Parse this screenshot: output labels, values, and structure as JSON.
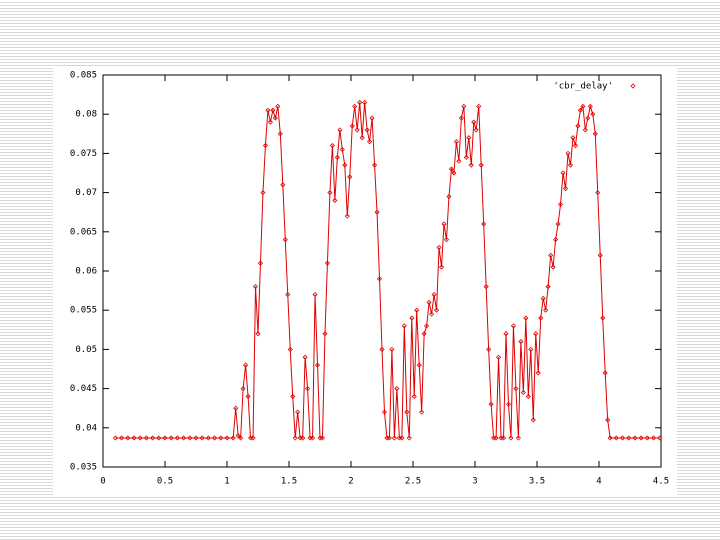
{
  "chart_data": {
    "type": "line",
    "series": [
      {
        "name": "'cbr_delay'",
        "color": "#e00000",
        "x": [
          0.1,
          0.15,
          0.2,
          0.25,
          0.3,
          0.35,
          0.4,
          0.45,
          0.5,
          0.55,
          0.6,
          0.65,
          0.7,
          0.75,
          0.8,
          0.85,
          0.9,
          0.95,
          1,
          1.05,
          1.07,
          1.09,
          1.11,
          1.13,
          1.15,
          1.17,
          1.19,
          1.21,
          1.23,
          1.25,
          1.27,
          1.29,
          1.31,
          1.33,
          1.35,
          1.37,
          1.39,
          1.41,
          1.43,
          1.45,
          1.47,
          1.49,
          1.51,
          1.53,
          1.55,
          1.57,
          1.59,
          1.61,
          1.63,
          1.65,
          1.67,
          1.69,
          1.71,
          1.73,
          1.75,
          1.77,
          1.79,
          1.81,
          1.83,
          1.85,
          1.87,
          1.89,
          1.91,
          1.93,
          1.95,
          1.97,
          1.99,
          2.01,
          2.03,
          2.05,
          2.07,
          2.09,
          2.11,
          2.13,
          2.15,
          2.17,
          2.19,
          2.21,
          2.23,
          2.25,
          2.27,
          2.29,
          2.31,
          2.33,
          2.35,
          2.37,
          2.39,
          2.41,
          2.43,
          2.45,
          2.47,
          2.49,
          2.51,
          2.53,
          2.55,
          2.57,
          2.59,
          2.61,
          2.63,
          2.65,
          2.67,
          2.69,
          2.71,
          2.73,
          2.75,
          2.77,
          2.79,
          2.81,
          2.83,
          2.85,
          2.87,
          2.89,
          2.91,
          2.93,
          2.95,
          2.97,
          2.99,
          3.01,
          3.03,
          3.05,
          3.07,
          3.09,
          3.11,
          3.13,
          3.15,
          3.17,
          3.19,
          3.21,
          3.23,
          3.25,
          3.27,
          3.29,
          3.31,
          3.33,
          3.35,
          3.37,
          3.39,
          3.41,
          3.43,
          3.45,
          3.47,
          3.49,
          3.51,
          3.53,
          3.55,
          3.57,
          3.59,
          3.61,
          3.63,
          3.65,
          3.67,
          3.69,
          3.71,
          3.73,
          3.75,
          3.77,
          3.79,
          3.81,
          3.83,
          3.85,
          3.87,
          3.89,
          3.91,
          3.93,
          3.95,
          3.97,
          3.99,
          4.01,
          4.03,
          4.05,
          4.07,
          4.09,
          4.14,
          4.19,
          4.24,
          4.29,
          4.34,
          4.39,
          4.44,
          4.49
        ],
        "values": [
          0.0387,
          0.0387,
          0.0387,
          0.0387,
          0.0387,
          0.0387,
          0.0387,
          0.0387,
          0.0387,
          0.0387,
          0.0387,
          0.0387,
          0.0387,
          0.0387,
          0.0387,
          0.0387,
          0.0387,
          0.0387,
          0.0387,
          0.0387,
          0.0425,
          0.039,
          0.0387,
          0.045,
          0.048,
          0.044,
          0.0387,
          0.0387,
          0.058,
          0.052,
          0.061,
          0.07,
          0.076,
          0.0805,
          0.079,
          0.0805,
          0.0795,
          0.081,
          0.0775,
          0.071,
          0.064,
          0.057,
          0.05,
          0.044,
          0.0387,
          0.042,
          0.0387,
          0.0387,
          0.049,
          0.045,
          0.0387,
          0.0387,
          0.057,
          0.048,
          0.0387,
          0.0387,
          0.052,
          0.061,
          0.07,
          0.076,
          0.069,
          0.0745,
          0.078,
          0.0755,
          0.0735,
          0.067,
          0.072,
          0.0785,
          0.081,
          0.078,
          0.0815,
          0.077,
          0.0815,
          0.078,
          0.0765,
          0.0795,
          0.0735,
          0.0675,
          0.059,
          0.05,
          0.042,
          0.0387,
          0.0387,
          0.05,
          0.0387,
          0.045,
          0.0387,
          0.0387,
          0.053,
          0.042,
          0.0387,
          0.054,
          0.044,
          0.055,
          0.048,
          0.042,
          0.052,
          0.053,
          0.056,
          0.0545,
          0.057,
          0.055,
          0.063,
          0.0605,
          0.066,
          0.064,
          0.0695,
          0.073,
          0.0725,
          0.0765,
          0.074,
          0.0795,
          0.081,
          0.0745,
          0.077,
          0.0735,
          0.079,
          0.078,
          0.081,
          0.0735,
          0.066,
          0.058,
          0.05,
          0.043,
          0.0387,
          0.0387,
          0.049,
          0.0387,
          0.0387,
          0.052,
          0.043,
          0.0387,
          0.053,
          0.045,
          0.0387,
          0.051,
          0.0445,
          0.054,
          0.044,
          0.05,
          0.041,
          0.052,
          0.047,
          0.054,
          0.0565,
          0.055,
          0.058,
          0.062,
          0.0605,
          0.064,
          0.066,
          0.0685,
          0.0725,
          0.0705,
          0.075,
          0.0735,
          0.077,
          0.076,
          0.0785,
          0.0805,
          0.081,
          0.078,
          0.0795,
          0.081,
          0.08,
          0.0775,
          0.07,
          0.062,
          0.054,
          0.047,
          0.041,
          0.0387,
          0.0387,
          0.0387,
          0.0387,
          0.0387,
          0.0387,
          0.0387,
          0.0387,
          0.0387
        ]
      }
    ],
    "xlim": [
      0,
      4.5
    ],
    "xticks": [
      0,
      0.5,
      1,
      1.5,
      2,
      2.5,
      3,
      3.5,
      4,
      4.5
    ],
    "ylim": [
      0.035,
      0.085
    ],
    "yticks": [
      0.035,
      0.04,
      0.045,
      0.05,
      0.055,
      0.06,
      0.065,
      0.07,
      0.075,
      0.08,
      0.085
    ],
    "grid": false,
    "legend": "top-right",
    "markers": true
  }
}
